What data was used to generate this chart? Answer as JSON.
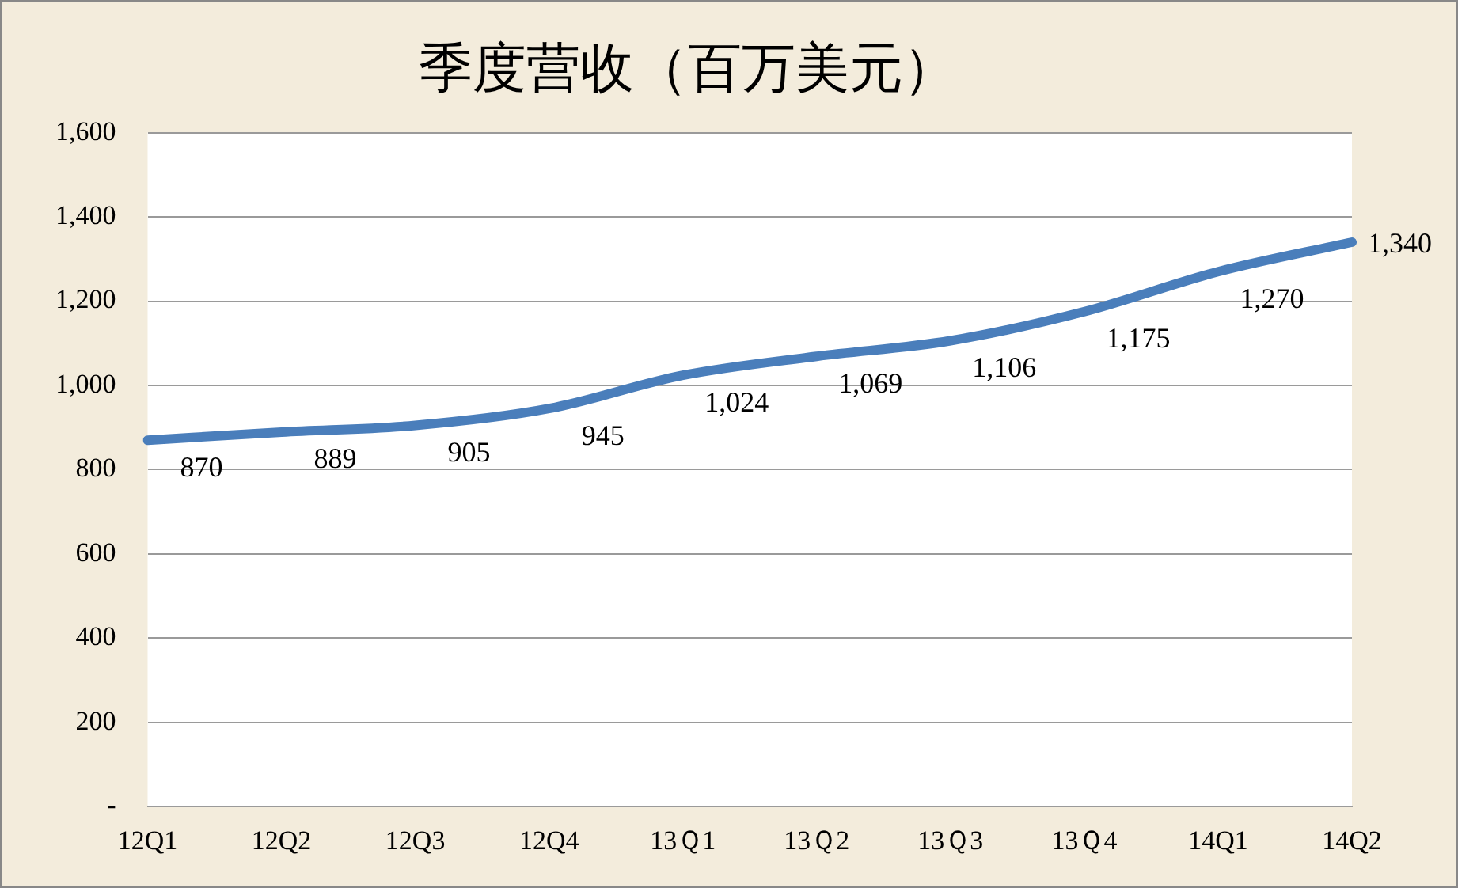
{
  "chart_data": {
    "type": "line",
    "title": "季度营收（百万美元）",
    "categories": [
      "12Q1",
      "12Q2",
      "12Q3",
      "12Q4",
      "13Ｑ1",
      "13Ｑ2",
      "13Ｑ3",
      "13Ｑ4",
      "14Q1",
      "14Q2"
    ],
    "series": [
      {
        "color": "#4a7ebb",
        "values": [
          870,
          889,
          905,
          945,
          1024,
          1069,
          1106,
          1175,
          1270,
          1340
        ],
        "value_labels": [
          "870",
          "889",
          "905",
          "945",
          "1,024",
          "1,069",
          "1,106",
          "1,175",
          "1,270",
          "1,340"
        ]
      }
    ],
    "ylim": [
      0,
      1600
    ],
    "yticks": [
      {
        "value": 0,
        "label": "-"
      },
      {
        "value": 200,
        "label": "200"
      },
      {
        "value": 400,
        "label": "400"
      },
      {
        "value": 600,
        "label": "600"
      },
      {
        "value": 800,
        "label": "800"
      },
      {
        "value": 1000,
        "label": "1,000"
      },
      {
        "value": 1200,
        "label": "1,200"
      },
      {
        "value": 1400,
        "label": "1,400"
      },
      {
        "value": 1600,
        "label": "1,600"
      }
    ],
    "grid": "y",
    "legend": false,
    "marker": "none",
    "line_style": "solid"
  }
}
